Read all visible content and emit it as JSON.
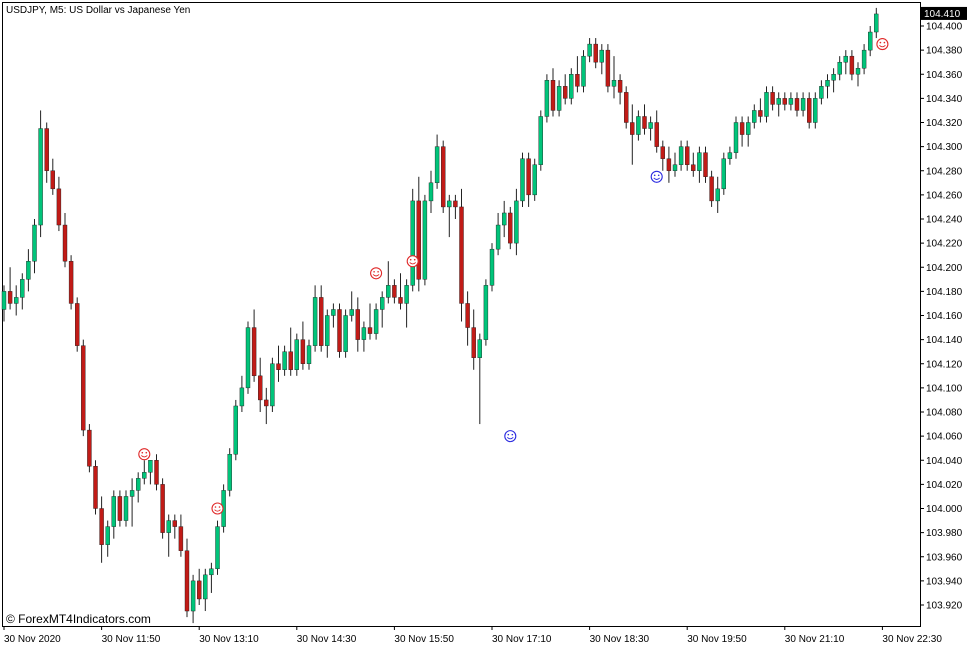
{
  "window": {
    "symbol_title": "USDJPY, M5:  US Dollar vs Japanese Yen",
    "credit": "© ForexMT4Indicators.com"
  },
  "colors": {
    "bull": "#00c47a",
    "bear": "#c11b17",
    "wick": "#222222",
    "buy_signal": "#2a2ae0",
    "sell_signal": "#e02a2a",
    "background": "#ffffff",
    "price_tag": "#000000"
  },
  "icons": {
    "signal": "smiley-face-icon"
  },
  "chart_data": {
    "type": "candlestick",
    "title": "USDJPY, M5:  US Dollar vs Japanese Yen",
    "ylim": [
      103.9,
      104.42
    ],
    "y_ticks": [
      104.4,
      104.38,
      104.36,
      104.34,
      104.32,
      104.3,
      104.28,
      104.26,
      104.24,
      104.22,
      104.2,
      104.18,
      104.16,
      104.14,
      104.12,
      104.1,
      104.08,
      104.06,
      104.04,
      104.02,
      104.0,
      103.98,
      103.96,
      103.94,
      103.92
    ],
    "y_tick_labels": [
      "104.400",
      "104.380",
      "104.360",
      "104.340",
      "104.320",
      "104.300",
      "104.280",
      "104.260",
      "104.240",
      "104.220",
      "104.200",
      "104.180",
      "104.160",
      "104.140",
      "104.120",
      "104.100",
      "104.080",
      "104.060",
      "104.040",
      "104.020",
      "104.000",
      "103.980",
      "103.960",
      "103.940",
      "103.920"
    ],
    "x_tick_labels": [
      "30 Nov 2020",
      "30 Nov 11:50",
      "30 Nov 13:10",
      "30 Nov 14:30",
      "30 Nov 15:50",
      "30 Nov 17:10",
      "30 Nov 18:30",
      "30 Nov 19:50",
      "30 Nov 21:10",
      "30 Nov 22:30"
    ],
    "x_tick_index": [
      0,
      16,
      32,
      48,
      64,
      80,
      96,
      112,
      128,
      144
    ],
    "current_price": 104.41,
    "candles": [
      [
        104.165,
        104.185,
        104.155,
        104.18
      ],
      [
        104.18,
        104.2,
        104.165,
        104.17
      ],
      [
        104.17,
        104.185,
        104.16,
        104.175
      ],
      [
        104.175,
        104.195,
        104.165,
        104.19
      ],
      [
        104.19,
        104.215,
        104.18,
        104.205
      ],
      [
        104.205,
        104.24,
        104.195,
        104.235
      ],
      [
        104.235,
        104.33,
        104.225,
        104.315
      ],
      [
        104.315,
        104.32,
        104.27,
        104.28
      ],
      [
        104.28,
        104.29,
        104.26,
        104.265
      ],
      [
        104.265,
        104.275,
        104.23,
        104.235
      ],
      [
        104.235,
        104.245,
        104.2,
        104.205
      ],
      [
        104.205,
        104.21,
        104.165,
        104.17
      ],
      [
        104.17,
        104.175,
        104.13,
        104.135
      ],
      [
        104.135,
        104.14,
        104.06,
        104.065
      ],
      [
        104.065,
        104.07,
        104.03,
        104.035
      ],
      [
        104.035,
        104.04,
        103.995,
        104.0
      ],
      [
        104.0,
        104.01,
        103.955,
        103.97
      ],
      [
        103.97,
        103.99,
        103.96,
        103.985
      ],
      [
        103.985,
        104.015,
        103.975,
        104.01
      ],
      [
        104.01,
        104.015,
        103.985,
        103.99
      ],
      [
        103.99,
        104.015,
        103.985,
        104.01
      ],
      [
        104.01,
        104.025,
        103.985,
        104.015
      ],
      [
        104.015,
        104.03,
        104.005,
        104.025
      ],
      [
        104.025,
        104.04,
        104.02,
        104.03
      ],
      [
        104.03,
        104.04,
        104.02,
        104.04
      ],
      [
        104.04,
        104.045,
        104.015,
        104.02
      ],
      [
        104.02,
        104.025,
        103.975,
        103.98
      ],
      [
        103.98,
        103.995,
        103.96,
        103.99
      ],
      [
        103.99,
        103.995,
        103.975,
        103.985
      ],
      [
        103.985,
        103.995,
        103.96,
        103.965
      ],
      [
        103.965,
        103.975,
        103.91,
        103.915
      ],
      [
        103.915,
        103.945,
        103.905,
        103.94
      ],
      [
        103.94,
        103.95,
        103.92,
        103.925
      ],
      [
        103.925,
        103.95,
        103.915,
        103.945
      ],
      [
        103.945,
        103.955,
        103.93,
        103.95
      ],
      [
        103.95,
        103.99,
        103.945,
        103.985
      ],
      [
        103.985,
        104.02,
        103.98,
        104.015
      ],
      [
        104.015,
        104.05,
        104.01,
        104.045
      ],
      [
        104.045,
        104.09,
        104.04,
        104.085
      ],
      [
        104.085,
        104.11,
        104.08,
        104.1
      ],
      [
        104.1,
        104.155,
        104.095,
        104.15
      ],
      [
        104.15,
        104.165,
        104.105,
        104.11
      ],
      [
        104.11,
        104.125,
        104.08,
        104.09
      ],
      [
        104.09,
        104.1,
        104.07,
        104.085
      ],
      [
        104.085,
        104.125,
        104.08,
        104.12
      ],
      [
        104.12,
        104.135,
        104.105,
        104.115
      ],
      [
        104.115,
        104.135,
        104.11,
        104.13
      ],
      [
        104.13,
        104.15,
        104.11,
        104.115
      ],
      [
        104.115,
        104.145,
        104.11,
        104.14
      ],
      [
        104.14,
        104.155,
        104.115,
        104.12
      ],
      [
        104.12,
        104.14,
        104.115,
        104.135
      ],
      [
        104.135,
        104.185,
        104.13,
        104.175
      ],
      [
        104.175,
        104.185,
        104.13,
        104.135
      ],
      [
        104.135,
        104.165,
        104.125,
        104.16
      ],
      [
        104.16,
        104.17,
        104.15,
        104.165
      ],
      [
        104.165,
        104.17,
        104.125,
        104.13
      ],
      [
        104.13,
        104.165,
        104.125,
        104.16
      ],
      [
        104.16,
        104.18,
        104.155,
        104.165
      ],
      [
        104.165,
        104.175,
        104.13,
        104.14
      ],
      [
        104.14,
        104.155,
        104.13,
        104.15
      ],
      [
        104.15,
        104.17,
        104.14,
        104.145
      ],
      [
        104.145,
        104.17,
        104.14,
        104.165
      ],
      [
        104.165,
        104.18,
        104.15,
        104.175
      ],
      [
        104.175,
        104.205,
        104.17,
        104.185
      ],
      [
        104.185,
        104.19,
        104.17,
        104.175
      ],
      [
        104.175,
        104.195,
        104.165,
        104.17
      ],
      [
        104.17,
        104.19,
        104.15,
        104.185
      ],
      [
        104.185,
        104.265,
        104.18,
        104.255
      ],
      [
        104.255,
        104.275,
        104.18,
        104.19
      ],
      [
        104.19,
        104.26,
        104.185,
        104.255
      ],
      [
        104.255,
        104.28,
        104.245,
        104.27
      ],
      [
        104.27,
        104.31,
        104.265,
        104.3
      ],
      [
        104.3,
        104.305,
        104.245,
        104.25
      ],
      [
        104.25,
        104.26,
        104.225,
        104.255
      ],
      [
        104.255,
        104.26,
        104.24,
        104.25
      ],
      [
        104.25,
        104.265,
        104.155,
        104.17
      ],
      [
        104.17,
        104.18,
        104.135,
        104.15
      ],
      [
        104.15,
        104.165,
        104.115,
        104.125
      ],
      [
        104.125,
        104.145,
        104.07,
        104.14
      ],
      [
        104.14,
        104.19,
        104.135,
        104.185
      ],
      [
        104.185,
        104.22,
        104.18,
        104.215
      ],
      [
        104.215,
        104.245,
        104.21,
        104.235
      ],
      [
        104.235,
        104.255,
        104.225,
        104.245
      ],
      [
        104.245,
        104.25,
        104.215,
        104.22
      ],
      [
        104.22,
        104.265,
        104.21,
        104.255
      ],
      [
        104.255,
        104.295,
        104.25,
        104.29
      ],
      [
        104.29,
        104.295,
        104.25,
        104.26
      ],
      [
        104.26,
        104.29,
        104.255,
        104.285
      ],
      [
        104.285,
        104.33,
        104.28,
        104.325
      ],
      [
        104.325,
        104.36,
        104.32,
        104.355
      ],
      [
        104.355,
        104.365,
        104.325,
        104.33
      ],
      [
        104.33,
        104.355,
        104.325,
        104.35
      ],
      [
        104.35,
        104.36,
        104.335,
        104.34
      ],
      [
        104.34,
        104.365,
        104.335,
        104.36
      ],
      [
        104.36,
        104.375,
        104.345,
        104.35
      ],
      [
        104.35,
        104.38,
        104.345,
        104.375
      ],
      [
        104.375,
        104.39,
        104.37,
        104.385
      ],
      [
        104.385,
        104.39,
        104.365,
        104.37
      ],
      [
        104.37,
        104.385,
        104.36,
        104.38
      ],
      [
        104.38,
        104.385,
        104.345,
        104.35
      ],
      [
        104.35,
        104.375,
        104.34,
        104.355
      ],
      [
        104.355,
        104.36,
        104.335,
        104.345
      ],
      [
        104.345,
        104.35,
        104.315,
        104.32
      ],
      [
        104.32,
        104.335,
        104.285,
        104.31
      ],
      [
        104.31,
        104.33,
        104.305,
        104.325
      ],
      [
        104.325,
        104.335,
        104.31,
        104.315
      ],
      [
        104.315,
        104.325,
        104.305,
        104.32
      ],
      [
        104.32,
        104.33,
        104.295,
        104.3
      ],
      [
        104.3,
        104.305,
        104.28,
        104.29
      ],
      [
        104.29,
        104.3,
        104.27,
        104.28
      ],
      [
        104.28,
        104.295,
        104.275,
        104.285
      ],
      [
        104.285,
        104.305,
        104.28,
        104.3
      ],
      [
        104.3,
        104.305,
        104.28,
        104.285
      ],
      [
        104.285,
        104.295,
        104.275,
        104.28
      ],
      [
        104.28,
        104.3,
        104.27,
        104.295
      ],
      [
        104.295,
        104.3,
        104.27,
        104.275
      ],
      [
        104.275,
        104.28,
        104.25,
        104.255
      ],
      [
        104.255,
        104.275,
        104.245,
        104.265
      ],
      [
        104.265,
        104.295,
        104.26,
        104.29
      ],
      [
        104.29,
        104.3,
        104.285,
        104.295
      ],
      [
        104.295,
        104.325,
        104.29,
        104.32
      ],
      [
        104.32,
        104.325,
        104.3,
        104.31
      ],
      [
        104.31,
        104.325,
        104.3,
        104.32
      ],
      [
        104.32,
        104.335,
        104.315,
        104.33
      ],
      [
        104.33,
        104.34,
        104.32,
        104.325
      ],
      [
        104.325,
        104.35,
        104.32,
        104.345
      ],
      [
        104.345,
        104.35,
        104.33,
        104.335
      ],
      [
        104.335,
        104.345,
        104.325,
        104.34
      ],
      [
        104.34,
        104.345,
        104.33,
        104.335
      ],
      [
        104.335,
        104.345,
        104.33,
        104.34
      ],
      [
        104.34,
        104.345,
        104.325,
        104.33
      ],
      [
        104.33,
        104.345,
        104.325,
        104.34
      ],
      [
        104.34,
        104.345,
        104.315,
        104.32
      ],
      [
        104.32,
        104.345,
        104.315,
        104.34
      ],
      [
        104.34,
        104.355,
        104.335,
        104.35
      ],
      [
        104.35,
        104.36,
        104.34,
        104.355
      ],
      [
        104.355,
        104.365,
        104.345,
        104.36
      ],
      [
        104.36,
        104.375,
        104.355,
        104.37
      ],
      [
        104.37,
        104.38,
        104.36,
        104.375
      ],
      [
        104.375,
        104.38,
        104.355,
        104.36
      ],
      [
        104.36,
        104.37,
        104.35,
        104.365
      ],
      [
        104.365,
        104.385,
        104.36,
        104.38
      ],
      [
        104.38,
        104.4,
        104.375,
        104.395
      ],
      [
        104.395,
        104.415,
        104.39,
        104.41
      ]
    ],
    "signals": [
      {
        "index": 23,
        "type": "sell",
        "price": 104.045
      },
      {
        "index": 35,
        "type": "sell",
        "price": 104.0
      },
      {
        "index": 61,
        "type": "sell",
        "price": 104.195
      },
      {
        "index": 67,
        "type": "sell",
        "price": 104.205
      },
      {
        "index": 83,
        "type": "buy",
        "price": 104.06
      },
      {
        "index": 107,
        "type": "buy",
        "price": 104.275
      },
      {
        "index": 144,
        "type": "sell",
        "price": 104.385
      }
    ]
  }
}
